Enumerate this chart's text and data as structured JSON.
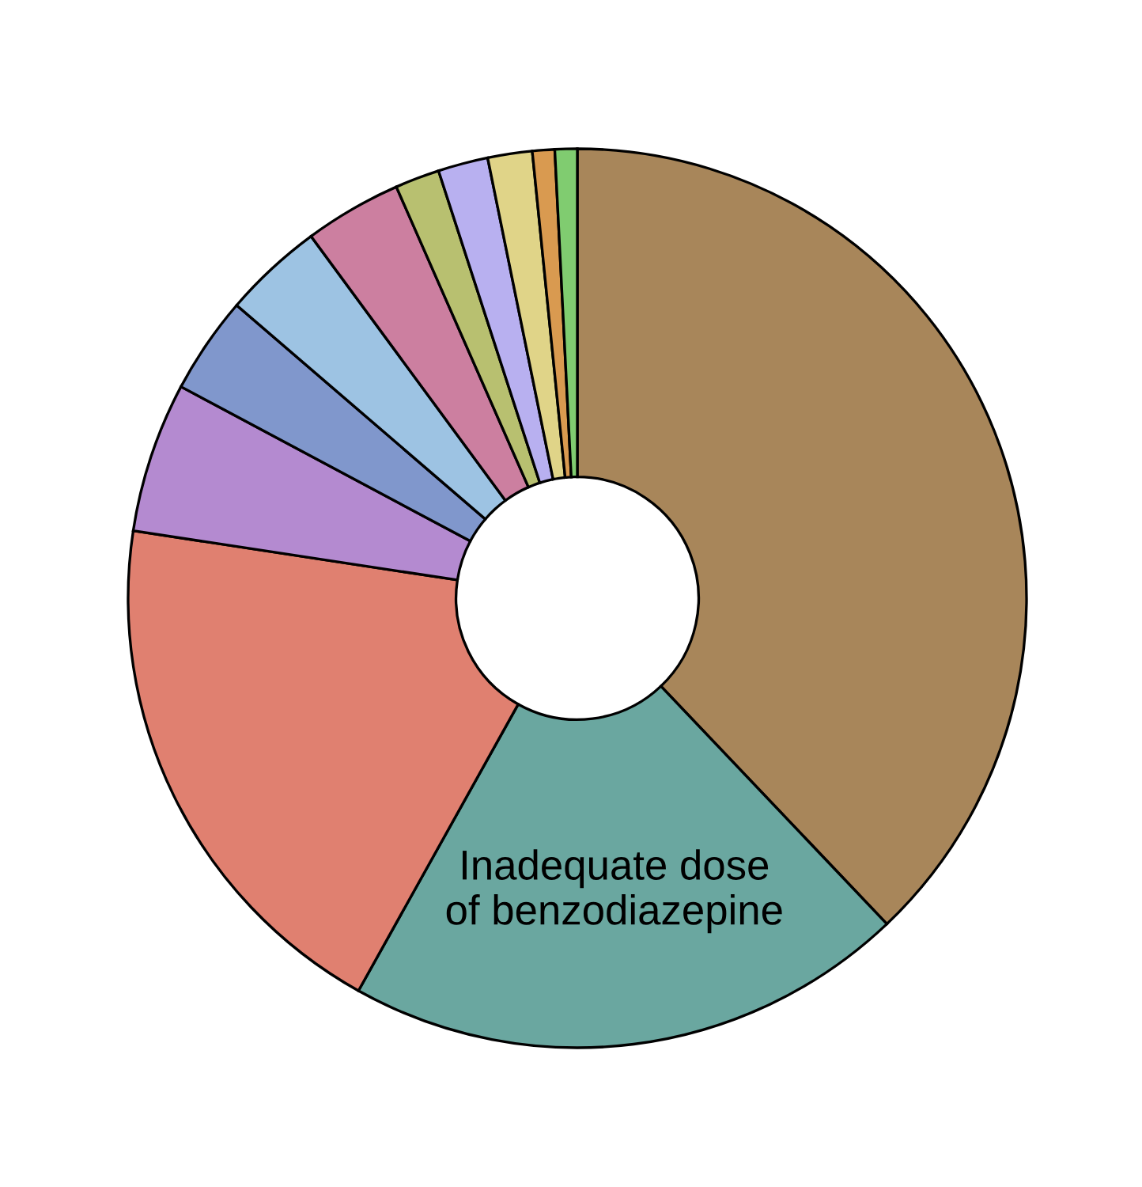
{
  "chart_data": {
    "type": "donut",
    "categories": [
      null,
      "Inadequate dose\nof benzodiazepine",
      null,
      null,
      null,
      null,
      null,
      null,
      null,
      null,
      null,
      null
    ],
    "values": [
      37.9,
      20.2,
      19.3,
      5.4,
      3.5,
      3.6,
      3.5,
      1.6,
      1.8,
      1.6,
      0.8,
      0.8
    ],
    "colors": [
      "#a8865a",
      "#6aa7a0",
      "#e08070",
      "#b48ad0",
      "#8097cc",
      "#9dc3e3",
      "#cc7fa0",
      "#b8c070",
      "#b8b0f0",
      "#e0d488",
      "#d99a50",
      "#80cc70"
    ],
    "legend": false
  }
}
